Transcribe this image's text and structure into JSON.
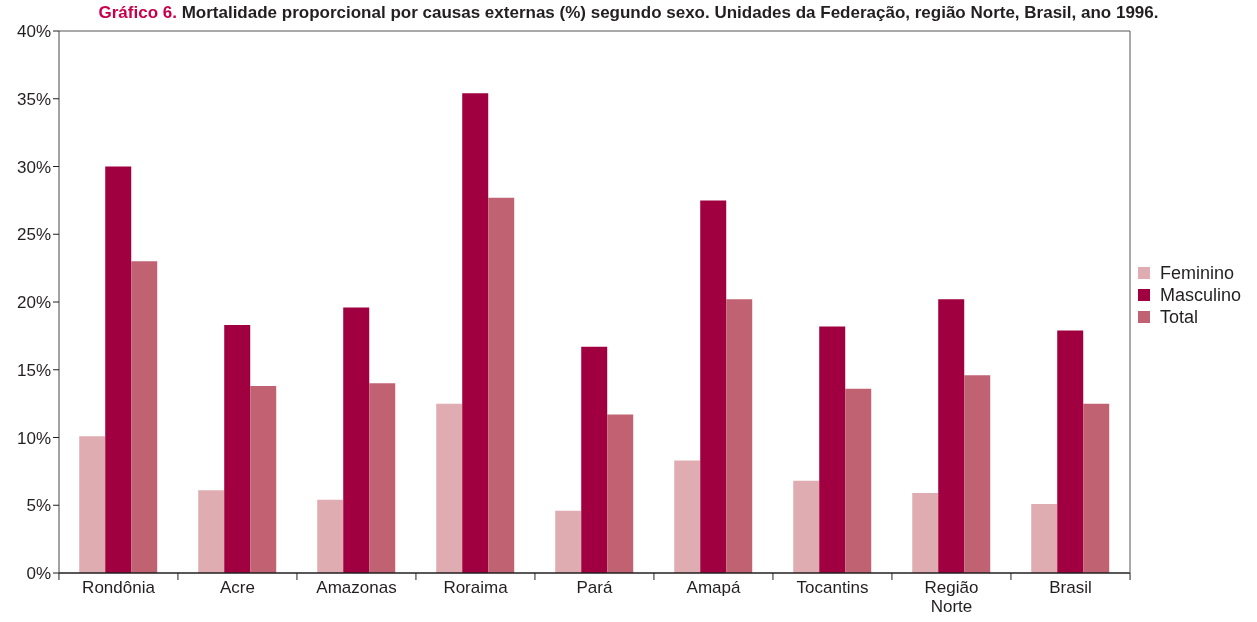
{
  "chart_data": {
    "type": "bar",
    "title": "Gráfico 6. Mortalidade proporcional por causas externas (%) segundo sexo. Unidades da Federação, região Norte, Brasil, ano 1996.",
    "categories": [
      "Rondônia",
      "Acre",
      "Amazonas",
      "Roraima",
      "Pará",
      "Amapá",
      "Tocantins",
      "Região Norte",
      "Brasil"
    ],
    "series": [
      {
        "name": "Feminino",
        "color": "#dfadb1",
        "values": [
          10.1,
          6.1,
          5.4,
          12.5,
          4.6,
          8.3,
          6.8,
          5.9,
          5.1
        ]
      },
      {
        "name": "Masculino",
        "color": "#a0003f",
        "values": [
          30.0,
          18.3,
          19.6,
          35.4,
          16.7,
          27.5,
          18.2,
          20.2,
          17.9
        ]
      },
      {
        "name": "Total",
        "color": "#c06272",
        "values": [
          23.0,
          13.8,
          14.0,
          27.7,
          11.7,
          20.2,
          13.6,
          14.6,
          12.5
        ]
      }
    ],
    "ylim": [
      0,
      40
    ],
    "yticks": [
      {
        "value": 0,
        "label": "0%"
      },
      {
        "value": 5,
        "label": "5%"
      },
      {
        "value": 10,
        "label": "10%"
      },
      {
        "value": 15,
        "label": "15%"
      },
      {
        "value": 20,
        "label": "20%"
      },
      {
        "value": 25,
        "label": "25%"
      },
      {
        "value": 30,
        "label": "30%"
      },
      {
        "value": 35,
        "label": "35%"
      },
      {
        "value": 40,
        "label": "40%"
      }
    ],
    "legend": "right"
  }
}
